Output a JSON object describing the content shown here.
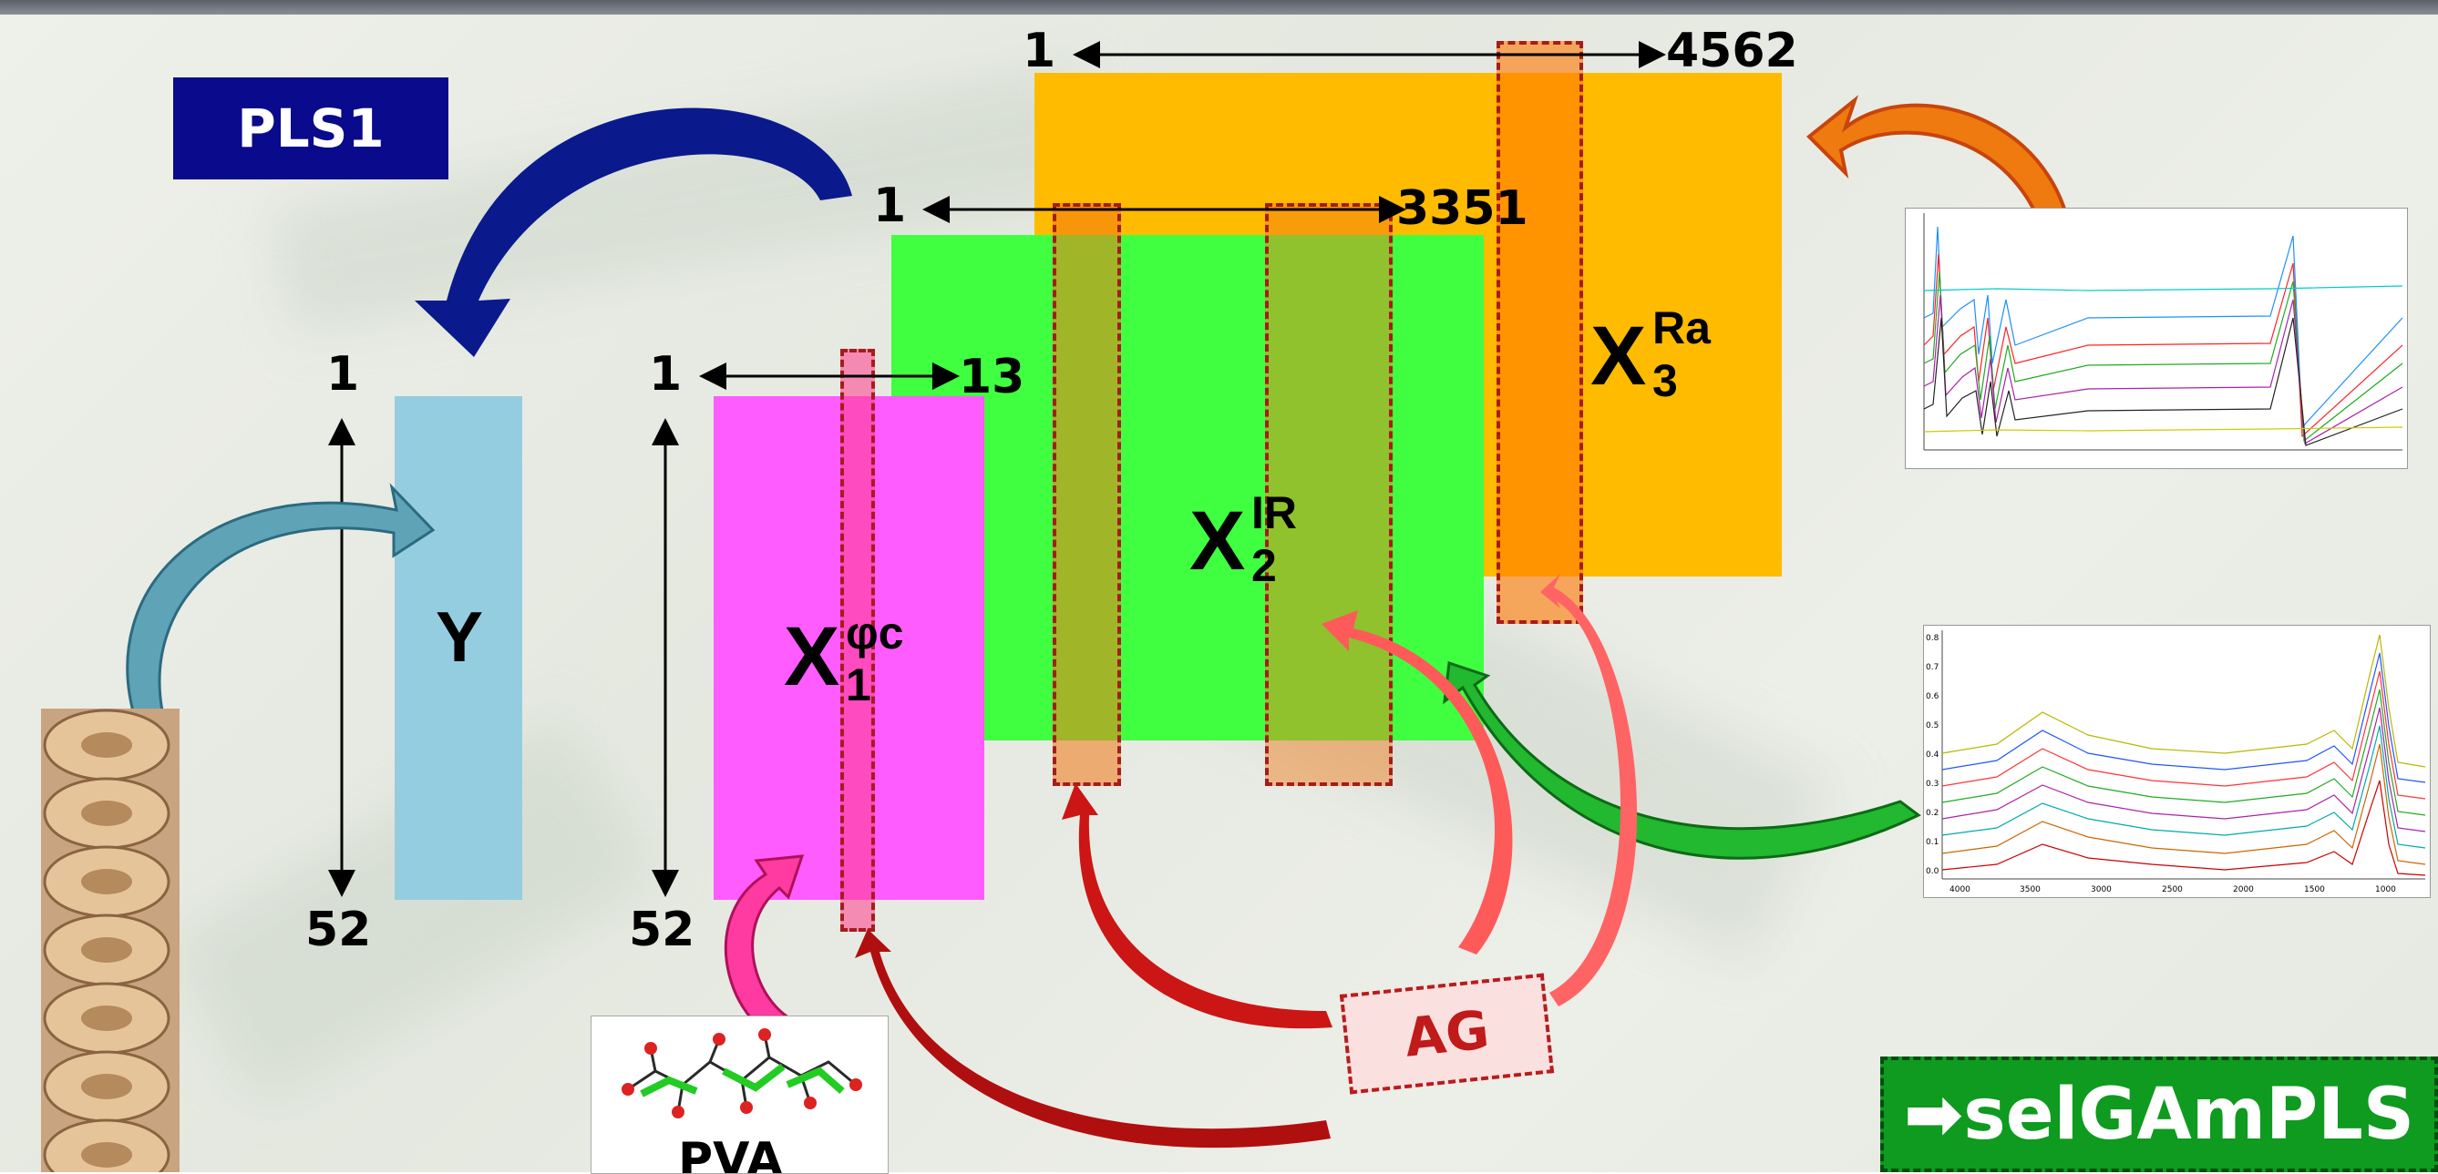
{
  "header": {
    "method_label": "PLS1"
  },
  "blocks": {
    "y": {
      "label": "Y",
      "row_start": "1",
      "row_end": "52",
      "color": "#94cddf"
    },
    "x1": {
      "label": "X",
      "subscript": "1",
      "superscript": "φc",
      "row_start": "1",
      "row_end": "52",
      "col_start": "1",
      "col_end": "13",
      "color": "#ff5cff"
    },
    "x2": {
      "label": "X",
      "subscript": "2",
      "superscript": "IR",
      "col_start": "1",
      "col_end": "3351",
      "color": "#40ff40"
    },
    "x3": {
      "label": "X",
      "subscript": "3",
      "superscript": "Ra",
      "col_start": "1",
      "col_end": "4562",
      "color": "#ffbb00"
    }
  },
  "algorithm": {
    "label": "AG",
    "color": "#c01a1a"
  },
  "result": {
    "label": "➡selGAmPLS",
    "color": "#0f9a20"
  },
  "sample_label": "PVA",
  "icons": {
    "samples_photo": "bread-samples-photo",
    "molecule": "molecule-structure-image",
    "raman_spectra": "raman-spectra-plot",
    "ir_spectra": "ir-spectra-plot"
  },
  "ir_spectrum_axis": {
    "x_ticks": [
      "4000",
      "3500",
      "3000",
      "2500",
      "2000",
      "1500",
      "1000"
    ],
    "y_ticks": [
      "0.8",
      "0.7",
      "0.6",
      "0.5",
      "0.4",
      "0.3",
      "0.2",
      "0.1",
      "0.0"
    ]
  }
}
